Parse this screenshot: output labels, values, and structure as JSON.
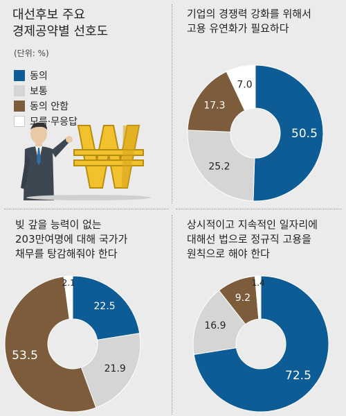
{
  "main_title": "대선후보 주요\n경제공약별 선호도",
  "unit": "(단위: %)",
  "legend": [
    {
      "label": "동의",
      "color": "#0d5c96"
    },
    {
      "label": "보통",
      "color": "#d5d5d5"
    },
    {
      "label": "동의 안함",
      "color": "#7d5c3c"
    },
    {
      "label": "모름·무응답",
      "color": "#ffffff"
    }
  ],
  "chart_data": [
    {
      "type": "pie",
      "title": "기업의 경쟁력 강화를 위해서\n고용 유연화가 필요하다",
      "categories": [
        "동의",
        "보통",
        "동의 안함",
        "모름·무응답"
      ],
      "values": [
        50.5,
        25.2,
        17.3,
        7.0
      ],
      "labels": [
        "50.5",
        "25.2",
        "17.3",
        "7.0"
      ]
    },
    {
      "type": "pie",
      "title": "빚 갚을 능력이 없는\n203만여명에 대해 국가가\n채무를 탕감해줘야 한다",
      "categories": [
        "동의",
        "보통",
        "동의 안함",
        "모름·무응답"
      ],
      "values": [
        22.5,
        21.9,
        53.5,
        2.1
      ],
      "labels": [
        "22.5",
        "21.9",
        "53.5",
        "2.1"
      ]
    },
    {
      "type": "pie",
      "title": "상시적이고 지속적인 일자리에\n대해선 법으로 정규직 고용을\n원칙으로 해야 한다",
      "categories": [
        "동의",
        "보통",
        "동의 안함",
        "모름·무응답"
      ],
      "values": [
        72.5,
        16.9,
        9.2,
        1.4
      ],
      "labels": [
        "72.5",
        "16.9",
        "9.2",
        "1.4"
      ]
    }
  ]
}
